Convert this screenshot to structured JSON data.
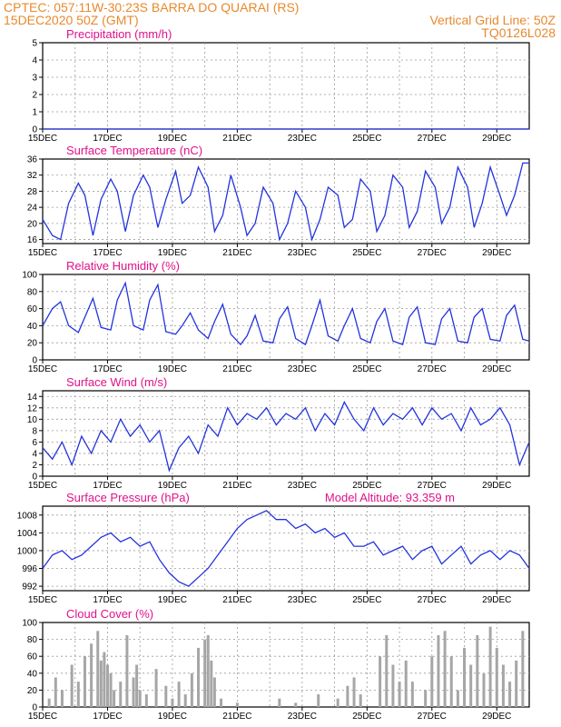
{
  "header": {
    "line1_left": "CPTEC:   057:11W-30:23S   BARRA DO QUARAI (RS)",
    "line2_left": "15DEC2020 50Z (GMT)",
    "line2_right": "Vertical Grid Line: 50Z",
    "line3_right": "TQ0126L028"
  },
  "time_axis": {
    "start_day": 15,
    "end_day": 30,
    "tick_labels": [
      "15DEC",
      "17DEC",
      "19DEC",
      "21DEC",
      "23DEC",
      "25DEC",
      "27DEC",
      "29DEC"
    ],
    "tick_days": [
      15,
      17,
      19,
      21,
      23,
      25,
      27,
      29
    ]
  },
  "colors": {
    "line": "#2233dd",
    "bar": "#a6a6a6",
    "title": "#e0128a",
    "header": "#e8892e"
  },
  "chart_data": [
    {
      "type": "line",
      "title": "Precipitation (mm/h)",
      "ylim": [
        0,
        5
      ],
      "yticks": [
        0,
        1,
        2,
        3,
        4,
        5
      ],
      "x": [
        15,
        30
      ],
      "y": [
        0,
        0
      ]
    },
    {
      "type": "line",
      "title": "Surface Temperature (nC)",
      "ylim": [
        15,
        36
      ],
      "yticks": [
        16,
        20,
        24,
        28,
        32,
        36
      ],
      "x": [
        15.0,
        15.3,
        15.55,
        15.8,
        16.1,
        16.3,
        16.55,
        16.8,
        17.1,
        17.3,
        17.55,
        17.8,
        18.1,
        18.3,
        18.55,
        18.8,
        19.1,
        19.3,
        19.55,
        19.8,
        20.1,
        20.3,
        20.55,
        20.8,
        21.1,
        21.3,
        21.55,
        21.8,
        22.1,
        22.3,
        22.55,
        22.8,
        23.1,
        23.3,
        23.55,
        23.8,
        24.1,
        24.3,
        24.55,
        24.8,
        25.1,
        25.3,
        25.55,
        25.8,
        26.1,
        26.3,
        26.55,
        26.8,
        27.1,
        27.3,
        27.55,
        27.8,
        28.1,
        28.3,
        28.55,
        28.8,
        29.1,
        29.3,
        29.55,
        29.8,
        30.0
      ],
      "y": [
        21,
        17,
        16,
        25,
        30,
        27,
        17,
        26,
        31,
        28,
        18,
        27,
        32,
        29,
        19,
        26,
        33,
        25,
        27,
        34,
        29,
        18,
        22,
        32,
        24,
        17,
        20,
        29,
        25,
        16,
        20,
        28,
        24,
        16,
        21,
        29,
        27,
        19,
        21,
        31,
        28,
        18,
        22,
        32,
        29,
        19,
        23,
        33,
        29,
        20,
        24,
        34,
        29,
        19,
        25,
        34,
        27,
        22,
        27,
        35,
        35
      ]
    },
    {
      "type": "line",
      "title": "Relative Humidity (%)",
      "ylim": [
        0,
        100
      ],
      "yticks": [
        0,
        20,
        40,
        60,
        80,
        100
      ],
      "x": [
        15.0,
        15.3,
        15.55,
        15.8,
        16.1,
        16.3,
        16.55,
        16.8,
        17.1,
        17.3,
        17.55,
        17.8,
        18.1,
        18.3,
        18.55,
        18.8,
        19.1,
        19.3,
        19.55,
        19.8,
        20.1,
        20.3,
        20.55,
        20.8,
        21.1,
        21.3,
        21.55,
        21.8,
        22.1,
        22.3,
        22.55,
        22.8,
        23.1,
        23.3,
        23.55,
        23.8,
        24.1,
        24.3,
        24.55,
        24.8,
        25.1,
        25.3,
        25.55,
        25.8,
        26.1,
        26.3,
        26.55,
        26.8,
        27.1,
        27.3,
        27.55,
        27.8,
        28.1,
        28.3,
        28.55,
        28.8,
        29.1,
        29.3,
        29.55,
        29.8,
        30.0
      ],
      "y": [
        40,
        60,
        68,
        40,
        32,
        50,
        72,
        38,
        35,
        70,
        90,
        40,
        35,
        70,
        88,
        33,
        30,
        40,
        55,
        35,
        25,
        45,
        65,
        30,
        18,
        28,
        52,
        22,
        20,
        48,
        62,
        25,
        18,
        40,
        70,
        28,
        22,
        40,
        60,
        25,
        20,
        45,
        60,
        22,
        18,
        50,
        62,
        20,
        18,
        48,
        60,
        22,
        20,
        50,
        60,
        24,
        22,
        52,
        64,
        24,
        22
      ]
    },
    {
      "type": "line",
      "title": "Surface Wind (m/s)",
      "ylim": [
        0,
        15
      ],
      "yticks": [
        0,
        2,
        4,
        6,
        8,
        10,
        12,
        14
      ],
      "x": [
        15.0,
        15.3,
        15.6,
        15.9,
        16.2,
        16.5,
        16.8,
        17.1,
        17.4,
        17.7,
        18.0,
        18.3,
        18.6,
        18.9,
        19.2,
        19.5,
        19.8,
        20.1,
        20.4,
        20.7,
        21.0,
        21.3,
        21.6,
        21.9,
        22.2,
        22.5,
        22.8,
        23.1,
        23.4,
        23.7,
        24.0,
        24.3,
        24.6,
        24.9,
        25.2,
        25.5,
        25.8,
        26.1,
        26.4,
        26.7,
        27.0,
        27.3,
        27.6,
        27.9,
        28.2,
        28.5,
        28.8,
        29.1,
        29.4,
        29.7,
        30.0
      ],
      "y": [
        5,
        3,
        6,
        2,
        7,
        4,
        8,
        6,
        10,
        7,
        9,
        6,
        8,
        1,
        5,
        7,
        4,
        9,
        7,
        12,
        9,
        11,
        10,
        12,
        9,
        11,
        10,
        12,
        8,
        11,
        9,
        13,
        10,
        8,
        12,
        9,
        11,
        10,
        12,
        9,
        12,
        10,
        11,
        8,
        12,
        9,
        10,
        12,
        9,
        2,
        6
      ]
    },
    {
      "type": "line",
      "title": "Surface Pressure (hPa)",
      "annotation": "Model Altitude: 93.359  m",
      "ylim": [
        991,
        1010
      ],
      "yticks": [
        992,
        996,
        1000,
        1004,
        1008
      ],
      "x": [
        15.0,
        15.3,
        15.6,
        15.9,
        16.2,
        16.5,
        16.8,
        17.1,
        17.4,
        17.7,
        18.0,
        18.3,
        18.6,
        18.9,
        19.2,
        19.5,
        19.8,
        20.1,
        20.4,
        20.7,
        21.0,
        21.3,
        21.6,
        21.9,
        22.2,
        22.5,
        22.8,
        23.1,
        23.4,
        23.7,
        24.0,
        24.3,
        24.6,
        24.9,
        25.2,
        25.5,
        25.8,
        26.1,
        26.4,
        26.7,
        27.0,
        27.3,
        27.6,
        27.9,
        28.2,
        28.5,
        28.8,
        29.1,
        29.4,
        29.7,
        30.0
      ],
      "y": [
        996,
        999,
        1000,
        998,
        999,
        1001,
        1003,
        1004,
        1002,
        1003,
        1001,
        1002,
        998,
        995,
        993,
        992,
        994,
        996,
        999,
        1002,
        1005,
        1007,
        1008,
        1009,
        1007,
        1007,
        1005,
        1006,
        1004,
        1005,
        1003,
        1004,
        1001,
        1001,
        1002,
        999,
        1000,
        1001,
        998,
        1000,
        1001,
        997,
        999,
        1001,
        997,
        999,
        1000,
        998,
        1000,
        999,
        996
      ]
    },
    {
      "type": "bar",
      "title": "Cloud Cover (%)",
      "ylim": [
        0,
        100
      ],
      "yticks": [
        0,
        20,
        40,
        60,
        80,
        100
      ],
      "x": [
        15.2,
        15.4,
        15.6,
        15.9,
        16.1,
        16.3,
        16.5,
        16.7,
        16.8,
        16.9,
        17.0,
        17.1,
        17.2,
        17.4,
        17.6,
        17.8,
        17.9,
        18.0,
        18.2,
        18.5,
        18.8,
        19.0,
        19.2,
        19.4,
        19.6,
        19.8,
        20.0,
        20.1,
        20.2,
        20.3,
        20.5,
        21.0,
        22.3,
        22.8,
        23.5,
        24.1,
        24.4,
        24.6,
        24.8,
        25.4,
        25.6,
        25.8,
        26.0,
        26.2,
        26.4,
        26.8,
        27.0,
        27.2,
        27.4,
        27.6,
        27.8,
        28.0,
        28.2,
        28.4,
        28.6,
        28.8,
        29.0,
        29.2,
        29.4,
        29.6,
        29.8
      ],
      "values": [
        10,
        35,
        20,
        50,
        30,
        60,
        75,
        90,
        55,
        65,
        50,
        40,
        20,
        30,
        85,
        35,
        50,
        20,
        15,
        45,
        25,
        10,
        30,
        15,
        40,
        70,
        80,
        85,
        55,
        35,
        10,
        5,
        10,
        5,
        15,
        10,
        25,
        35,
        15,
        60,
        85,
        50,
        30,
        55,
        30,
        20,
        60,
        85,
        90,
        60,
        20,
        70,
        50,
        85,
        40,
        95,
        70,
        50,
        30,
        55,
        90
      ]
    }
  ]
}
